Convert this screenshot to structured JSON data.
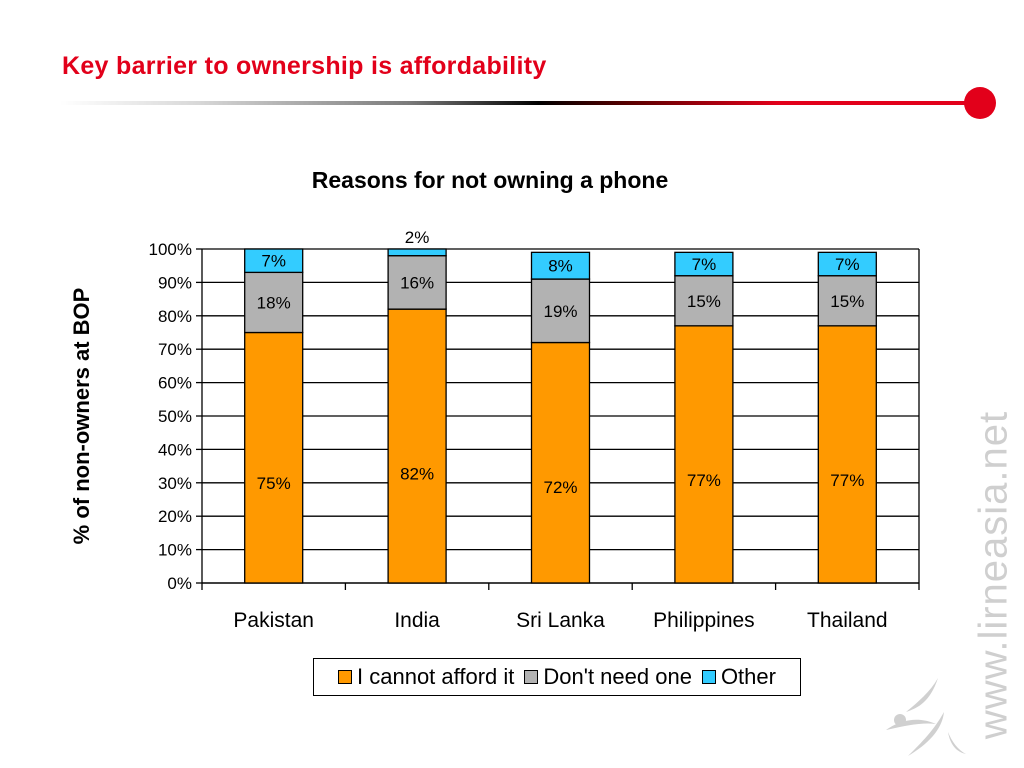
{
  "slide": {
    "title": "Key barrier to ownership is affordability",
    "watermark": "www.lirneasia.net"
  },
  "colors": {
    "title_red": "#e2001a",
    "cannot_afford": "#ff9900",
    "dont_need": "#b2b2b2",
    "other": "#33ccff"
  },
  "chart_data": {
    "type": "bar",
    "stacked": true,
    "title": "Reasons for not owning a phone",
    "ylabel": "% of non-owners at BOP",
    "xlabel": "",
    "ylim": [
      0,
      100
    ],
    "yticks": [
      "0%",
      "10%",
      "20%",
      "30%",
      "40%",
      "50%",
      "60%",
      "70%",
      "80%",
      "90%",
      "100%"
    ],
    "categories": [
      "Pakistan",
      "India",
      "Sri Lanka",
      "Philippines",
      "Thailand"
    ],
    "series": [
      {
        "name": "I cannot afford it",
        "color": "#ff9900",
        "values": [
          75,
          82,
          72,
          77,
          77
        ],
        "labels": [
          "75%",
          "82%",
          "72%",
          "77%",
          "77%"
        ]
      },
      {
        "name": "Don't need one",
        "color": "#b2b2b2",
        "values": [
          18,
          16,
          19,
          15,
          15
        ],
        "labels": [
          "18%",
          "16%",
          "19%",
          "15%",
          "15%"
        ]
      },
      {
        "name": "Other",
        "color": "#33ccff",
        "values": [
          7,
          2,
          8,
          7,
          7
        ],
        "labels": [
          "7%",
          "2%",
          "8%",
          "7%",
          "7%"
        ]
      }
    ],
    "grid": true,
    "legend_position": "bottom"
  }
}
